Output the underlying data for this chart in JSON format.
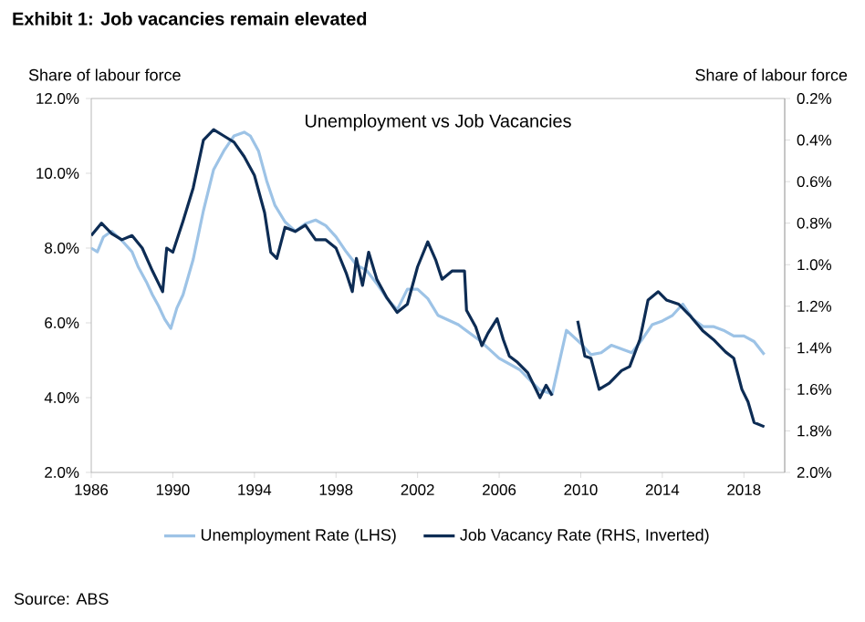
{
  "chart_data": {
    "type": "line",
    "title": "Exhibit 1: Job vacancies remain elevated",
    "subtitle": "Unemployment vs Job Vacancies",
    "ylabel": "Share of labour force",
    "y2label": "Share of labour force",
    "annotations": [
      "Source: ABS"
    ],
    "xlim": [
      1986,
      2020
    ],
    "xticks": [
      1986,
      1990,
      1994,
      1998,
      2002,
      2006,
      2010,
      2014,
      2018
    ],
    "ylim": [
      2,
      12
    ],
    "yticks": [
      {
        "value": 2,
        "label": "2.0%"
      },
      {
        "value": 4,
        "label": "4.0%"
      },
      {
        "value": 6,
        "label": "6.0%"
      },
      {
        "value": 8,
        "label": "8.0%"
      },
      {
        "value": 10,
        "label": "10.0%"
      },
      {
        "value": 12,
        "label": "12.0%"
      }
    ],
    "y2lim": [
      2.0,
      0.2
    ],
    "y2ticks": [
      {
        "value": 0.2,
        "label": "0.2%"
      },
      {
        "value": 0.4,
        "label": "0.4%"
      },
      {
        "value": 0.6,
        "label": "0.6%"
      },
      {
        "value": 0.8,
        "label": "0.8%"
      },
      {
        "value": 1.0,
        "label": "1.0%"
      },
      {
        "value": 1.2,
        "label": "1.2%"
      },
      {
        "value": 1.4,
        "label": "1.4%"
      },
      {
        "value": 1.6,
        "label": "1.6%"
      },
      {
        "value": 1.8,
        "label": "1.8%"
      },
      {
        "value": 2.0,
        "label": "2.0%"
      }
    ],
    "legend": "bottom",
    "series": [
      {
        "name": "Unemployment Rate (LHS)",
        "color": "#9dc3e6",
        "x": [
          1986.0,
          1986.3,
          1986.6,
          1987.0,
          1987.5,
          1988.0,
          1988.3,
          1988.7,
          1989.0,
          1989.3,
          1989.6,
          1989.9,
          1990.2,
          1990.5,
          1991.0,
          1991.5,
          1992.0,
          1992.5,
          1993.0,
          1993.5,
          1993.8,
          1994.2,
          1994.6,
          1995.0,
          1995.5,
          1996.0,
          1996.5,
          1997.0,
          1997.5,
          1998.0,
          1998.5,
          1999.0,
          1999.5,
          2000.0,
          2000.5,
          2001.0,
          2001.5,
          2002.0,
          2002.5,
          2003.0,
          2004.0,
          2005.0,
          2006.0,
          2007.0,
          2008.0,
          2008.6,
          2009.3,
          2010.0,
          2010.5,
          2011.0,
          2011.5,
          2012.0,
          2012.5,
          2013.0,
          2013.5,
          2014.0,
          2014.5,
          2015.0,
          2015.5,
          2016.0,
          2016.5,
          2017.0,
          2017.5,
          2018.0,
          2018.5,
          2019.0
        ],
        "values": [
          8.0,
          7.9,
          8.3,
          8.45,
          8.2,
          7.9,
          7.5,
          7.1,
          6.75,
          6.45,
          6.1,
          5.85,
          6.4,
          6.75,
          7.7,
          9.0,
          10.1,
          10.6,
          11.0,
          11.1,
          11.0,
          10.6,
          9.8,
          9.15,
          8.7,
          8.45,
          8.65,
          8.75,
          8.6,
          8.3,
          7.9,
          7.55,
          7.4,
          7.05,
          6.65,
          6.35,
          6.9,
          6.9,
          6.65,
          6.2,
          5.95,
          5.55,
          5.05,
          4.75,
          4.2,
          4.1,
          5.8,
          5.45,
          5.15,
          5.2,
          5.4,
          5.3,
          5.2,
          5.55,
          5.95,
          6.05,
          6.2,
          6.5,
          6.1,
          5.9,
          5.9,
          5.8,
          5.65,
          5.65,
          5.5,
          5.15
        ]
      },
      {
        "name": "Job Vacancy Rate (RHS, Inverted)",
        "color": "#0d2c54",
        "axis": "y2",
        "x": [
          1986.0,
          1986.5,
          1987.0,
          1987.5,
          1988.0,
          1988.5,
          1989.0,
          1989.5,
          1989.7,
          1990.0,
          1990.5,
          1991.0,
          1991.5,
          1992.0,
          1992.5,
          1993.0,
          1993.5,
          1994.0,
          1994.5,
          1994.8,
          1995.1,
          1995.5,
          1996.0,
          1996.5,
          1997.0,
          1997.5,
          1998.0,
          1998.5,
          1998.8,
          1999.0,
          1999.3,
          1999.6,
          2000.0,
          2000.5,
          2001.0,
          2001.5,
          2002.0,
          2002.5,
          2002.9,
          2003.2,
          2003.7,
          2004.3,
          2004.4,
          2004.85,
          2005.15,
          2005.45,
          2005.9,
          2006.2,
          2006.5,
          2006.9,
          2007.4,
          2008.0,
          2008.3,
          2008.6,
          2009.2,
          2009.85,
          2010.2,
          2010.5,
          2010.9,
          2011.4,
          2012.0,
          2012.4,
          2012.9,
          2013.3,
          2013.8,
          2014.2,
          2014.8,
          2015.4,
          2016.0,
          2016.5,
          2017.1,
          2017.5,
          2017.9,
          2018.2,
          2018.5,
          2019.0
        ],
        "values": [
          0.86,
          0.8,
          0.85,
          0.88,
          0.86,
          0.92,
          1.03,
          1.13,
          0.92,
          0.94,
          0.79,
          0.63,
          0.4,
          0.35,
          0.38,
          0.41,
          0.48,
          0.57,
          0.75,
          0.94,
          0.97,
          0.82,
          0.84,
          0.81,
          0.88,
          0.88,
          0.92,
          1.04,
          1.13,
          0.97,
          1.1,
          0.94,
          1.07,
          1.16,
          1.23,
          1.19,
          1.01,
          0.89,
          0.98,
          1.07,
          1.03,
          1.03,
          1.22,
          1.3,
          1.39,
          1.33,
          1.26,
          1.36,
          1.44,
          1.47,
          1.52,
          1.64,
          1.58,
          1.63,
          null,
          1.27,
          1.44,
          1.45,
          1.6,
          1.57,
          1.51,
          1.49,
          1.36,
          1.17,
          1.13,
          1.17,
          1.19,
          1.25,
          1.32,
          1.36,
          1.42,
          1.45,
          1.6,
          1.66,
          1.76,
          1.78
        ]
      }
    ]
  }
}
